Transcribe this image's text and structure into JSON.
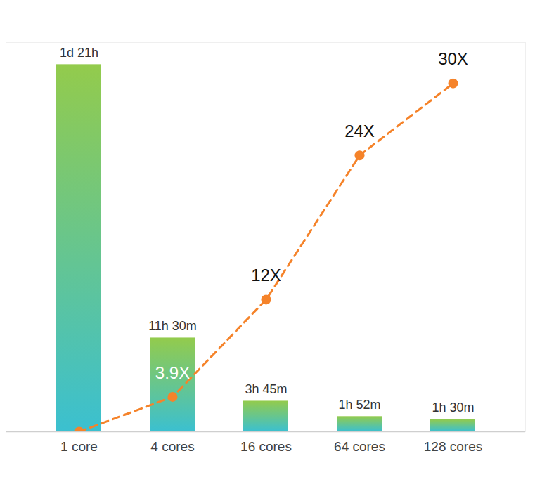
{
  "chart_data": {
    "type": "bar",
    "categories": [
      "1 core",
      "4 cores",
      "16 cores",
      "64 cores",
      "128 cores"
    ],
    "values": [
      45,
      11.5,
      3.75,
      1.867,
      1.5
    ],
    "value_labels": [
      "1d 21h",
      "11h 30m",
      "3h 45m",
      "1h 52m",
      "1h 30m"
    ],
    "data_labels": true,
    "ylim": [
      0,
      47.7
    ],
    "yticks": [],
    "y2lim": [
      1,
      33.4
    ],
    "y2ticks": [],
    "tick_labels": "x",
    "series": [
      {
        "type": "line",
        "axis": "y2",
        "color": "#f5832a",
        "line_style": "dashed",
        "marker": "circle",
        "values": [
          1,
          3.9,
          12,
          24,
          30
        ],
        "value_labels": [
          null,
          "3.9X",
          "12X",
          "24X",
          "30X"
        ]
      }
    ]
  }
}
